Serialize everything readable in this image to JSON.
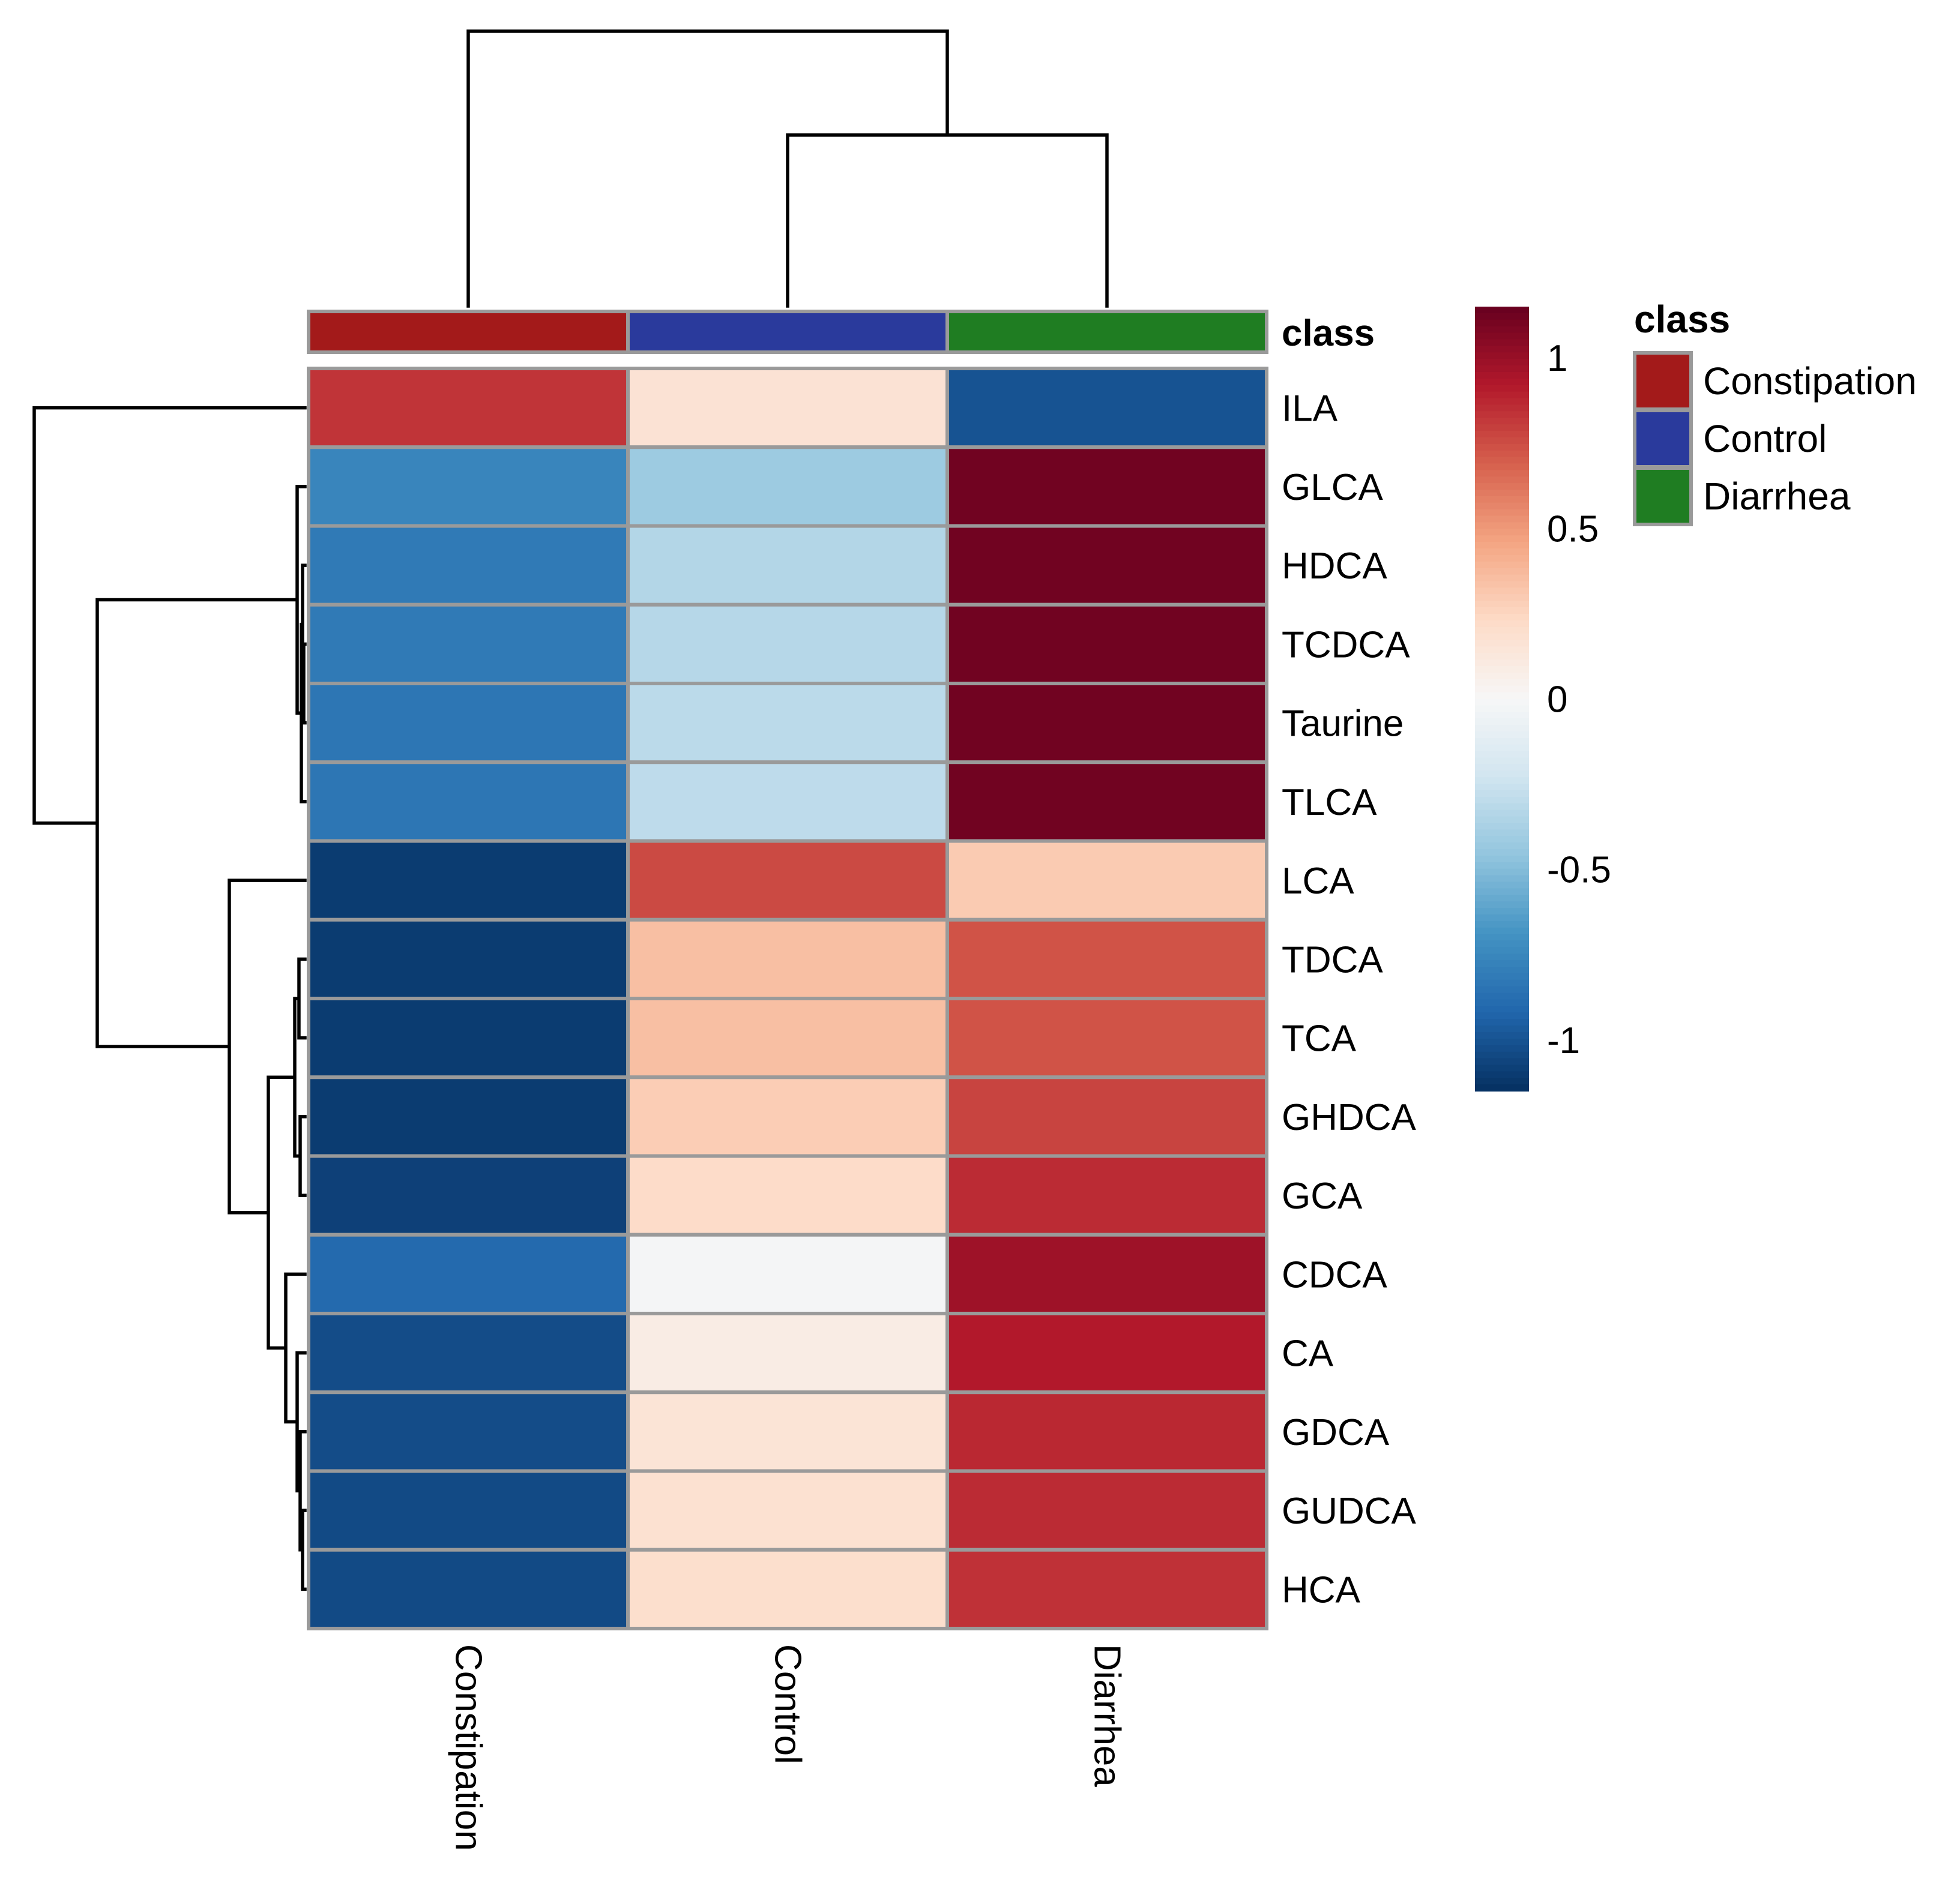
{
  "chart_data": {
    "type": "heatmap",
    "columns": [
      "Constipation",
      "Control",
      "Diarrhea"
    ],
    "rows": [
      "ILA",
      "GLCA",
      "HDCA",
      "TCDCA",
      "Taurine",
      "TLCA",
      "LCA",
      "TDCA",
      "TCA",
      "GHDCA",
      "GCA",
      "CDCA",
      "CA",
      "GDCA",
      "GUDCA",
      "HCA"
    ],
    "values": [
      [
        0.83,
        0.17,
        -1.0
      ],
      [
        -0.76,
        -0.42,
        1.12
      ],
      [
        -0.82,
        -0.34,
        1.12
      ],
      [
        -0.82,
        -0.33,
        1.12
      ],
      [
        -0.84,
        -0.31,
        1.12
      ],
      [
        -0.84,
        -0.3,
        1.12
      ],
      [
        -1.1,
        0.76,
        0.3
      ],
      [
        -1.1,
        0.35,
        0.73
      ],
      [
        -1.1,
        0.35,
        0.73
      ],
      [
        -1.1,
        0.29,
        0.78
      ],
      [
        -1.08,
        0.22,
        0.86
      ],
      [
        -0.9,
        -0.02,
        0.98
      ],
      [
        -1.03,
        0.09,
        0.92
      ],
      [
        -1.03,
        0.16,
        0.87
      ],
      [
        -1.04,
        0.18,
        0.86
      ],
      [
        -1.04,
        0.2,
        0.84
      ]
    ],
    "value_range": [
      -1.15,
      1.15
    ],
    "annotation": {
      "title": "class",
      "entries": [
        {
          "label": "Constipation",
          "color": "#A31A1A"
        },
        {
          "label": "Control",
          "color": "#2A3A9C"
        },
        {
          "label": "Diarrhea",
          "color": "#1F7D22"
        }
      ]
    },
    "colorbar": {
      "ticks": [
        1,
        0.5,
        0,
        -0.5,
        -1
      ],
      "tick_labels": [
        "1",
        "0.5",
        "0",
        "-0.5",
        "-1"
      ]
    },
    "col_dendrogram": {
      "merges": [
        [
          1,
          2
        ],
        [
          0,
          "(1,2)"
        ]
      ]
    },
    "row_dendrogram": {
      "description": "ILA separates first; GLCA–TLCA cluster; LCA with TDCA–HCA cluster"
    }
  }
}
